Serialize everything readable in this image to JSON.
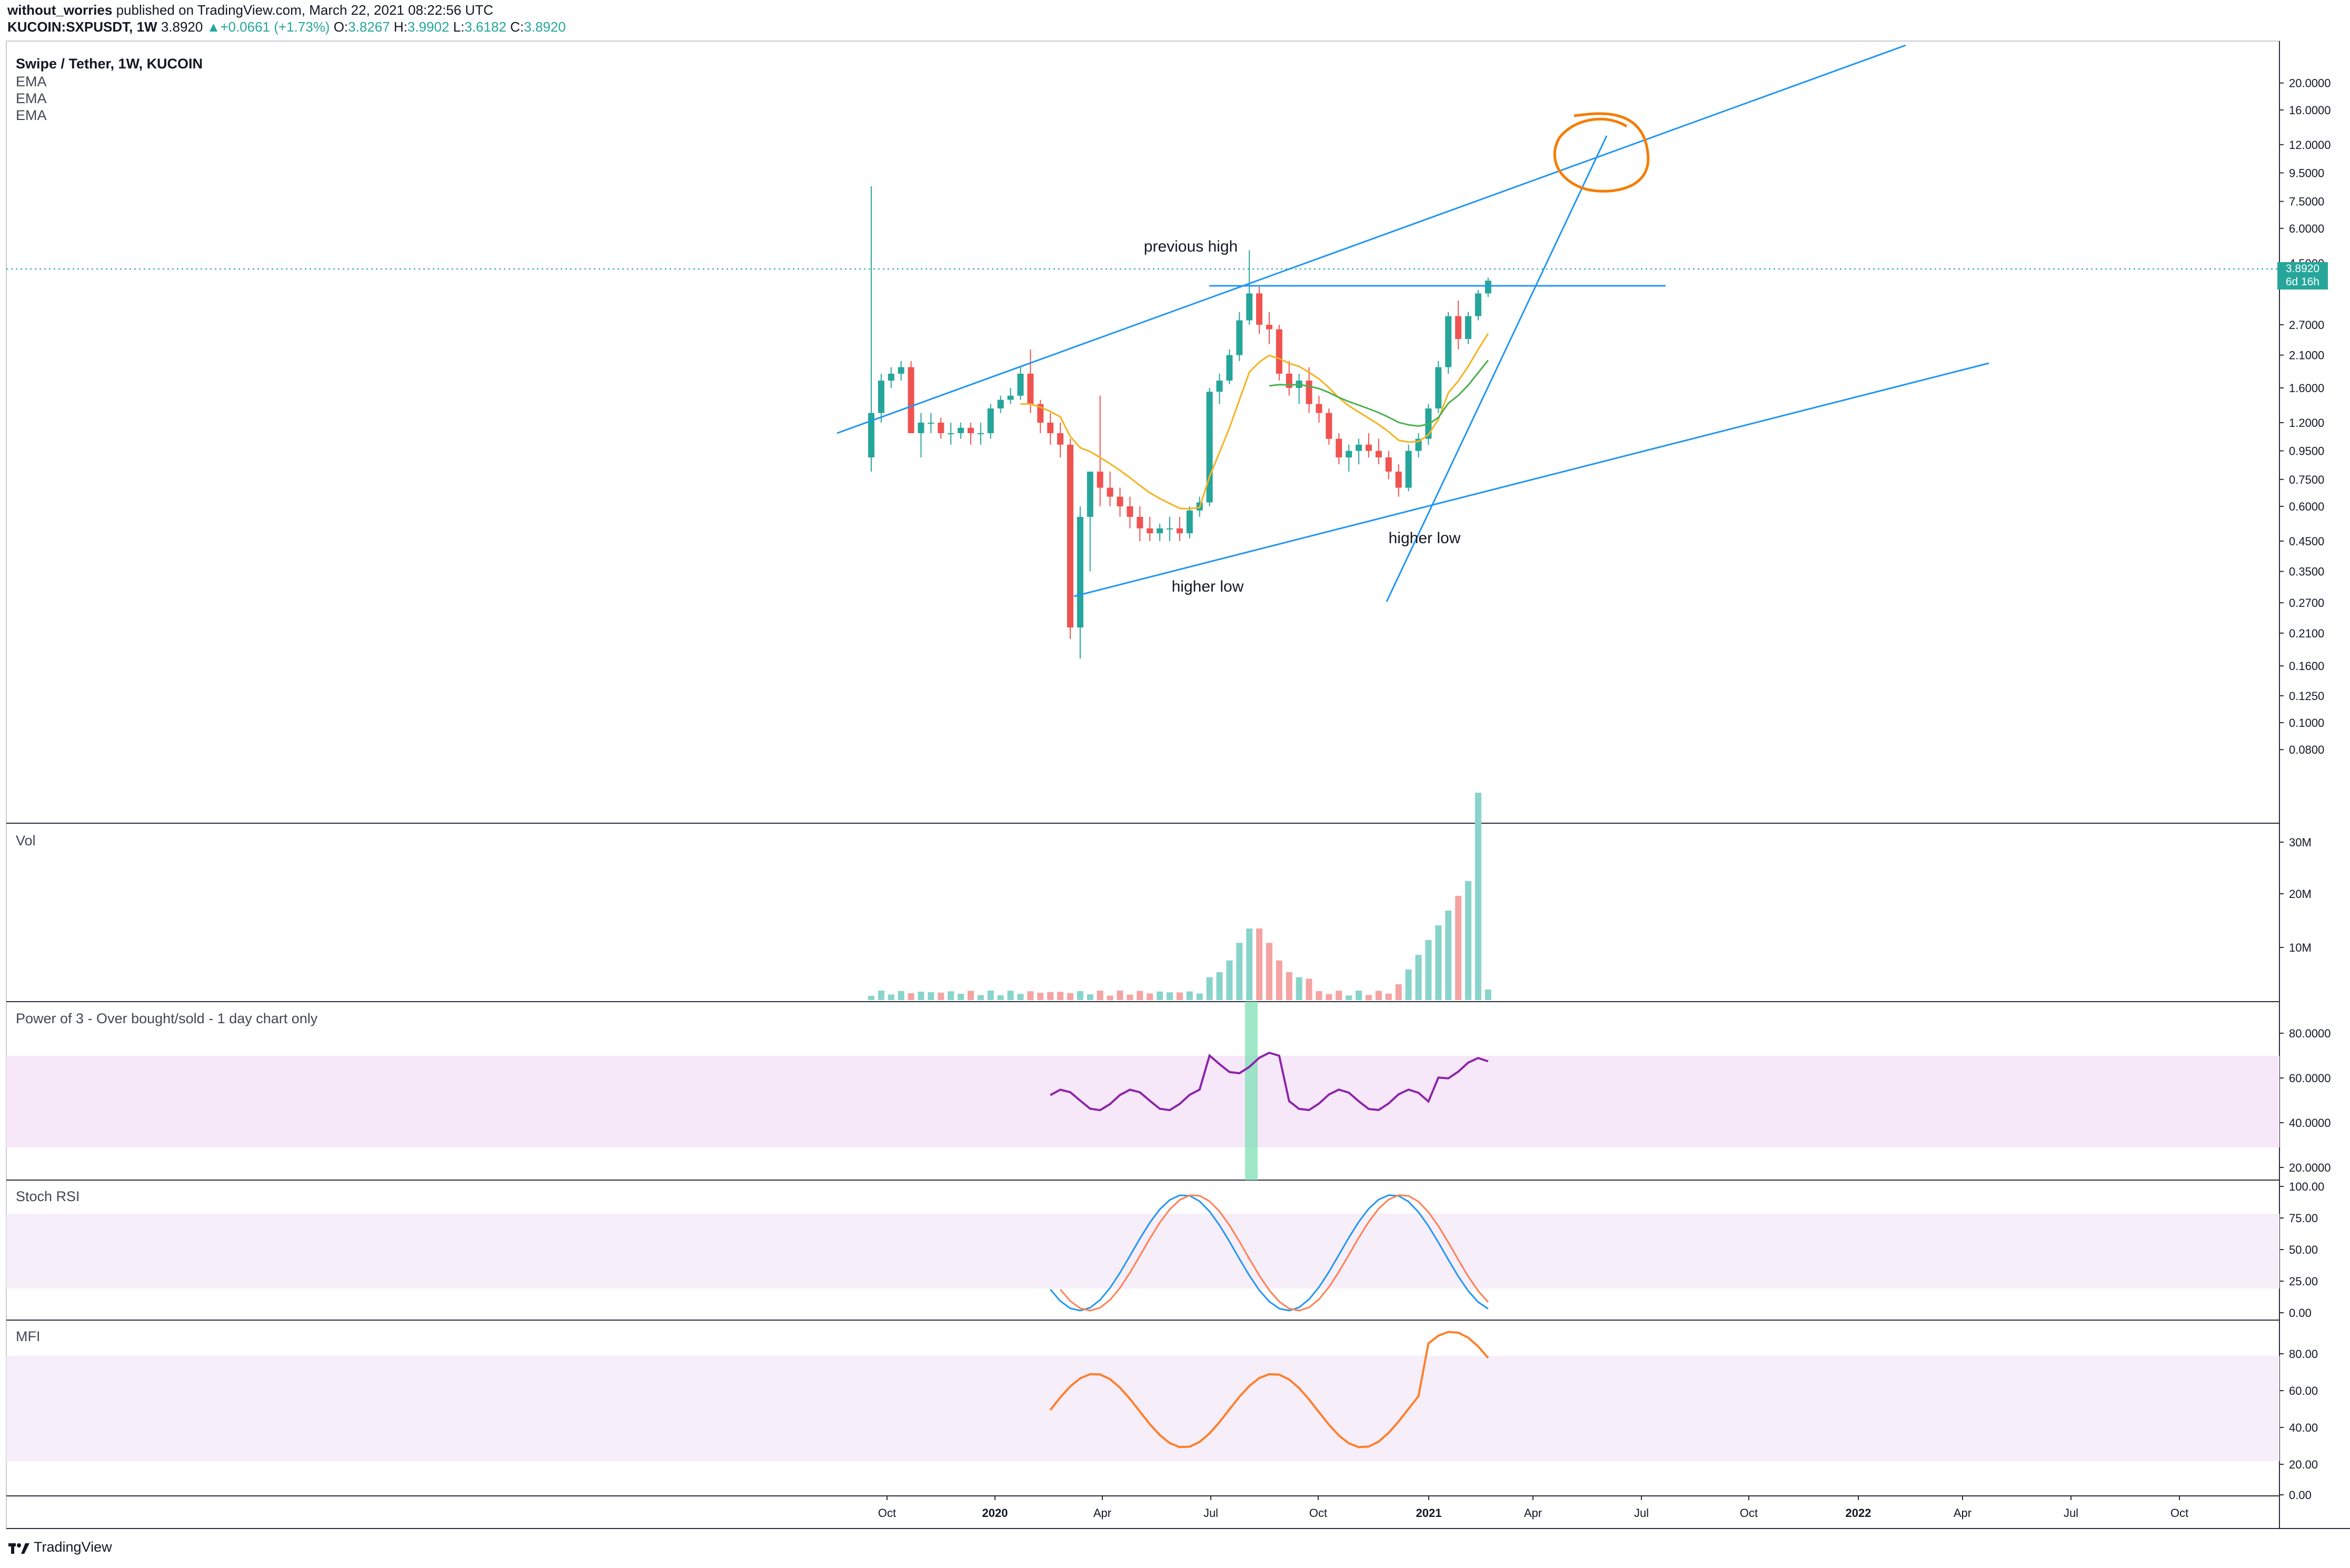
{
  "header": {
    "author": "without_worries",
    "published_text": " published on TradingView.com, March 22, 2021 08:22:56 UTC",
    "symbol_line": "KUCOIN:SXPUSDT, 1W",
    "last_price": "3.8920",
    "change_arrow": "▲",
    "change": "+0.0661 (+1.73%)",
    "open_label": "O:",
    "open": "3.8267",
    "high_label": "H:",
    "high": "3.9902",
    "low_label": "L:",
    "low": "3.6182",
    "close_label": "C:",
    "close": "3.8920"
  },
  "main_pane": {
    "title": "Swipe / Tether, 1W, KUCOIN",
    "studies": [
      "EMA",
      "EMA",
      "EMA"
    ],
    "price_tag": {
      "price": "3.8920",
      "countdown": "6d 16h"
    }
  },
  "annotations": {
    "previous_high": "previous high",
    "higher_low_1": "higher low",
    "higher_low_2": "higher low"
  },
  "panes": {
    "vol": "Vol",
    "power": "Power of 3 - Over bought/sold - 1 day chart only",
    "stoch": "Stoch RSI",
    "mfi": "MFI"
  },
  "footer": {
    "brand": "TradingView"
  },
  "colors": {
    "up": "#26a69a",
    "down": "#ef5350",
    "trendline": "#2196f3",
    "circle": "#f57c00",
    "ema_fast": "#f5b320",
    "ema_slow": "#4caf50",
    "power": "#8e24aa",
    "stoch_k": "#2196f3",
    "stoch_d": "#ff7f50",
    "mfi": "#ff7f2a",
    "band": "#f6e8f9"
  },
  "chart_data": [
    {
      "type": "candlestick",
      "name": "Swipe / Tether, 1W, KUCOIN",
      "y_scale": "log",
      "ylim": [
        0.07,
        20
      ],
      "y_ticks": [
        "20.0000",
        "16.0000",
        "12.0000",
        "9.5000",
        "7.5000",
        "6.0000",
        "4.5000",
        "3.8920",
        "2.7000",
        "2.1000",
        "1.6000",
        "1.2000",
        "0.9500",
        "0.7500",
        "0.6000",
        "0.4500",
        "0.3500",
        "0.2700",
        "0.2100",
        "0.1600",
        "0.1250",
        "0.1000",
        "0.0800"
      ],
      "x_ticks": [
        "Oct",
        "2020",
        "Apr",
        "Jul",
        "Oct",
        "2021",
        "Apr",
        "Jul",
        "Oct",
        "2022",
        "Apr",
        "Jul",
        "Oct"
      ],
      "ohlc_approx": [
        [
          0.9,
          8.5,
          0.8,
          1.3
        ],
        [
          1.3,
          1.8,
          1.2,
          1.7
        ],
        [
          1.7,
          1.9,
          1.6,
          1.8
        ],
        [
          1.8,
          2.0,
          1.7,
          1.9
        ],
        [
          1.9,
          2.0,
          1.1,
          1.1
        ],
        [
          1.1,
          1.3,
          0.9,
          1.2
        ],
        [
          1.2,
          1.3,
          1.1,
          1.2
        ],
        [
          1.2,
          1.25,
          1.05,
          1.1
        ],
        [
          1.1,
          1.2,
          1.0,
          1.1
        ],
        [
          1.1,
          1.2,
          1.05,
          1.15
        ],
        [
          1.15,
          1.2,
          1.0,
          1.1
        ],
        [
          1.1,
          1.2,
          1.0,
          1.1
        ],
        [
          1.1,
          1.4,
          1.05,
          1.35
        ],
        [
          1.35,
          1.5,
          1.3,
          1.45
        ],
        [
          1.45,
          1.6,
          1.4,
          1.5
        ],
        [
          1.5,
          1.9,
          1.45,
          1.8
        ],
        [
          1.8,
          2.2,
          1.3,
          1.4
        ],
        [
          1.4,
          1.45,
          1.1,
          1.2
        ],
        [
          1.2,
          1.3,
          1.0,
          1.1
        ],
        [
          1.1,
          1.2,
          0.9,
          1.0
        ],
        [
          1.0,
          1.05,
          0.2,
          0.22
        ],
        [
          0.22,
          0.6,
          0.17,
          0.55
        ],
        [
          0.55,
          0.8,
          0.35,
          0.8
        ],
        [
          0.8,
          1.5,
          0.6,
          0.7
        ],
        [
          0.7,
          0.8,
          0.6,
          0.65
        ],
        [
          0.65,
          0.7,
          0.55,
          0.6
        ],
        [
          0.6,
          0.65,
          0.5,
          0.55
        ],
        [
          0.55,
          0.6,
          0.45,
          0.5
        ],
        [
          0.5,
          0.55,
          0.45,
          0.48
        ],
        [
          0.48,
          0.52,
          0.45,
          0.5
        ],
        [
          0.5,
          0.55,
          0.45,
          0.5
        ],
        [
          0.5,
          0.55,
          0.45,
          0.48
        ],
        [
          0.48,
          0.6,
          0.46,
          0.58
        ],
        [
          0.58,
          0.65,
          0.55,
          0.62
        ],
        [
          0.62,
          1.6,
          0.6,
          1.55
        ],
        [
          1.55,
          1.8,
          1.4,
          1.7
        ],
        [
          1.7,
          2.2,
          1.65,
          2.1
        ],
        [
          2.1,
          3.0,
          2.0,
          2.8
        ],
        [
          2.8,
          5.0,
          2.7,
          3.5
        ],
        [
          3.5,
          3.7,
          2.5,
          2.7
        ],
        [
          2.7,
          3.0,
          2.3,
          2.6
        ],
        [
          2.6,
          2.7,
          1.7,
          1.8
        ],
        [
          1.8,
          2.0,
          1.5,
          1.6
        ],
        [
          1.6,
          1.8,
          1.4,
          1.7
        ],
        [
          1.7,
          1.9,
          1.3,
          1.4
        ],
        [
          1.4,
          1.5,
          1.2,
          1.3
        ],
        [
          1.3,
          1.35,
          1.0,
          1.05
        ],
        [
          1.05,
          1.1,
          0.85,
          0.9
        ],
        [
          0.9,
          1.0,
          0.8,
          0.95
        ],
        [
          0.95,
          1.05,
          0.85,
          1.0
        ],
        [
          1.0,
          1.1,
          0.9,
          0.95
        ],
        [
          0.95,
          1.05,
          0.85,
          0.9
        ],
        [
          0.9,
          0.95,
          0.75,
          0.8
        ],
        [
          0.8,
          0.85,
          0.65,
          0.7
        ],
        [
          0.7,
          1.0,
          0.68,
          0.95
        ],
        [
          0.95,
          1.1,
          0.9,
          1.05
        ],
        [
          1.05,
          1.4,
          1.0,
          1.35
        ],
        [
          1.35,
          2.0,
          1.3,
          1.9
        ],
        [
          1.9,
          3.0,
          1.8,
          2.9
        ],
        [
          2.9,
          3.3,
          2.2,
          2.4
        ],
        [
          2.4,
          3.0,
          2.3,
          2.9
        ],
        [
          2.9,
          3.6,
          2.8,
          3.5
        ],
        [
          3.5,
          3.99,
          3.4,
          3.89
        ]
      ]
    },
    {
      "type": "bar",
      "name": "Vol",
      "y_ticks": [
        "30M",
        "20M",
        "10M"
      ],
      "ylim": [
        0,
        32000000
      ]
    },
    {
      "type": "line",
      "name": "Power of 3 - Over bought/sold - 1 day chart only",
      "y_ticks": [
        "80.0000",
        "60.0000",
        "40.0000",
        "20.0000"
      ],
      "ylim": [
        15,
        90
      ],
      "band": [
        30,
        70
      ]
    },
    {
      "type": "line",
      "name": "Stoch RSI",
      "y_ticks": [
        "100.00",
        "75.00",
        "50.00",
        "25.00",
        "0.00"
      ],
      "ylim": [
        -5,
        105
      ],
      "band": [
        20,
        80
      ]
    },
    {
      "type": "line",
      "name": "MFI",
      "y_ticks": [
        "80.00",
        "60.00",
        "40.00",
        "20.00",
        "0.00"
      ],
      "ylim": [
        -5,
        100
      ],
      "band": [
        20,
        80
      ]
    }
  ]
}
